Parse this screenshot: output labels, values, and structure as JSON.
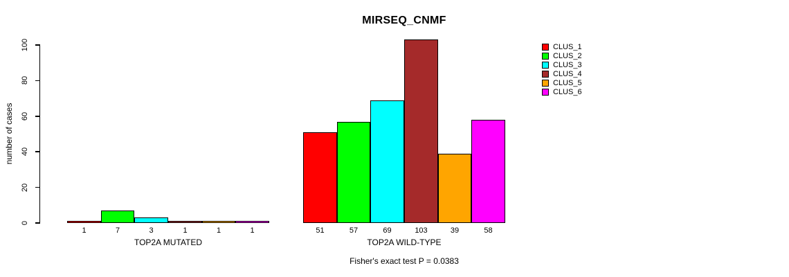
{
  "chart_data": {
    "type": "bar",
    "title": "MIRSEQ_CNMF",
    "ylabel": "number of cases",
    "xlabel": "",
    "ylim": [
      0,
      100
    ],
    "yticks": [
      0,
      20,
      40,
      60,
      80,
      100
    ],
    "grid": false,
    "legend_position": "right",
    "categories": [
      "TOP2A MUTATED",
      "TOP2A WILD-TYPE"
    ],
    "series": [
      {
        "name": "CLUS_1",
        "color": "#FF0000",
        "values": [
          1,
          51
        ]
      },
      {
        "name": "CLUS_2",
        "color": "#00FF00",
        "values": [
          7,
          57
        ]
      },
      {
        "name": "CLUS_3",
        "color": "#00FFFF",
        "values": [
          3,
          69
        ]
      },
      {
        "name": "CLUS_4",
        "color": "#A52A2A",
        "values": [
          1,
          103
        ]
      },
      {
        "name": "CLUS_5",
        "color": "#FFA500",
        "values": [
          1,
          39
        ]
      },
      {
        "name": "CLUS_6",
        "color": "#FF00FF",
        "values": [
          1,
          58
        ]
      }
    ],
    "bar_value_labels": {
      "TOP2A MUTATED": [
        1,
        7,
        3,
        1,
        1,
        1
      ],
      "TOP2A WILD-TYPE": [
        51,
        57,
        69,
        103,
        39,
        58
      ]
    },
    "annotation": "Fisher's exact test P = 0.0383"
  }
}
